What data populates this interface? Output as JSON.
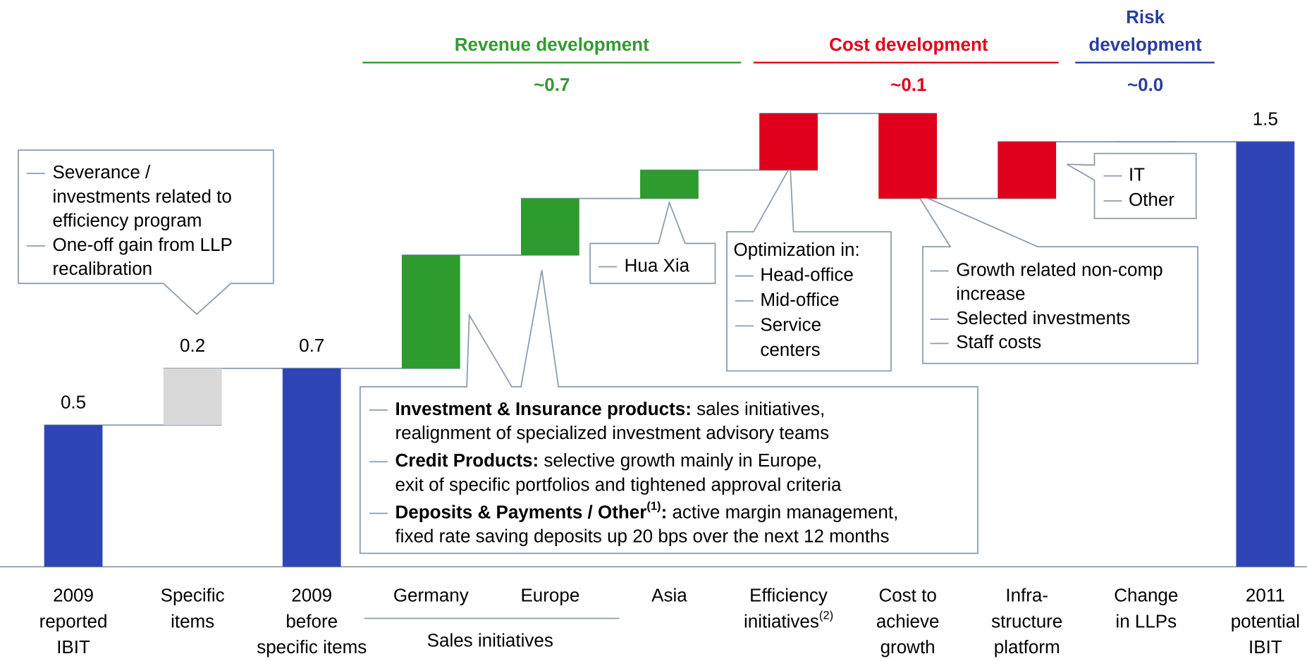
{
  "chart_data": {
    "type": "waterfall",
    "categories": [
      [
        "2009",
        "reported",
        "IBIT"
      ],
      [
        "Specific",
        "items"
      ],
      [
        "2009",
        "before",
        "specific items"
      ],
      [
        "Germany"
      ],
      [
        "Europe"
      ],
      [
        "Asia"
      ],
      [
        "Efficiency",
        [
          {
            "t": "initiatives"
          },
          {
            "t": "(2)",
            "sup": true
          }
        ]
      ],
      [
        "Cost to",
        "achieve",
        "growth"
      ],
      [
        "Infra-",
        "structure",
        "platform"
      ],
      [
        "Change",
        "in LLPs"
      ],
      [
        "2011",
        "potential",
        "IBIT"
      ]
    ],
    "values": [
      0.5,
      0.2,
      0.7,
      0.4,
      0.2,
      0.1,
      0.2,
      -0.3,
      0.2,
      0,
      1.5
    ],
    "value_labels": [
      "0.5",
      "0.2",
      "0.7",
      null,
      null,
      null,
      null,
      null,
      null,
      null,
      "1.5"
    ],
    "measures": [
      "total",
      "delta",
      "total",
      "delta",
      "delta",
      "delta",
      "delta",
      "delta",
      "delta",
      "delta",
      "total"
    ],
    "colors": [
      "#3045b5",
      "#d9d9d9",
      "#3045b5",
      "#2e9b2e",
      "#2e9b2e",
      "#2e9b2e",
      "#e0001b",
      "#e0001b",
      "#e0001b",
      "#e0001b",
      "#3045b5"
    ],
    "ylim": [
      0,
      1.6
    ],
    "groups": [
      {
        "title": [
          "Revenue development"
        ],
        "summary": "~0.7",
        "color": "#339933"
      },
      {
        "title": [
          "Cost development"
        ],
        "summary": "~0.1",
        "color": "#e0001b"
      },
      {
        "title": [
          "Risk",
          "development"
        ],
        "summary": "~0.0",
        "color": "#2a3e9f"
      }
    ],
    "subgroup": "Sales initiatives",
    "annotations": [
      {
        "items": [
          [
            "Severance /",
            "investments related to",
            "efficiency program"
          ],
          [
            "One-off gain from LLP",
            "recalibration"
          ]
        ]
      },
      {
        "items": [
          [
            "Hua Xia"
          ]
        ]
      },
      {
        "heading": "Optimization in:",
        "items": [
          [
            "Head-office"
          ],
          [
            "Mid-office"
          ],
          [
            "Service",
            "centers"
          ]
        ]
      },
      {
        "items": [
          [
            "IT"
          ],
          [
            "Other"
          ]
        ]
      },
      {
        "items": [
          [
            "Growth related non-comp",
            "increase"
          ],
          [
            "Selected investments"
          ],
          [
            "Staff costs"
          ]
        ]
      },
      {
        "items": [
          [
            [
              {
                "t": "Investment & Insurance products:",
                "b": true
              },
              {
                "t": " sales initiatives,"
              }
            ],
            "realignment of specialized investment advisory teams"
          ],
          [
            [
              {
                "t": "Credit Products:",
                "b": true
              },
              {
                "t": " selective growth mainly in Europe,"
              }
            ],
            "exit of specific portfolios and tightened approval criteria"
          ],
          [
            [
              {
                "t": "Deposits & Payments / Other",
                "b": true
              },
              {
                "t": "(1)",
                "sup": true,
                "b": true
              },
              {
                "t": ":",
                "b": true
              },
              {
                "t": " active margin management,"
              }
            ],
            "fixed rate saving deposits up 20 bps over the next 12 months"
          ]
        ]
      }
    ]
  }
}
